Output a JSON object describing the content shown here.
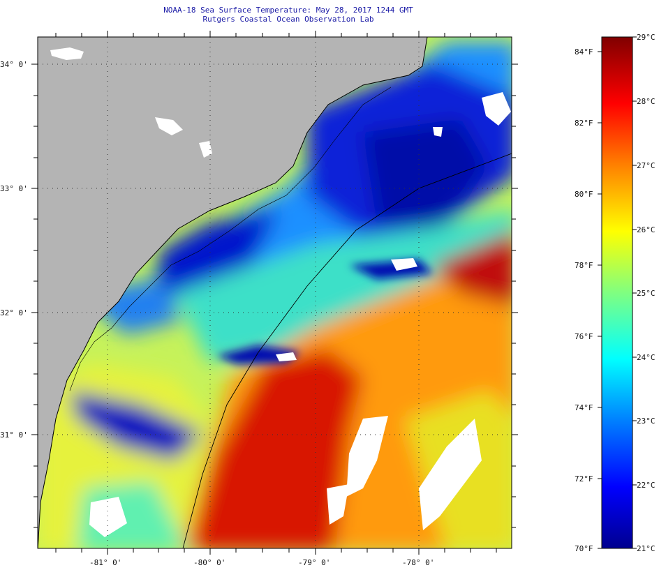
{
  "header": {
    "title": "NOAA-18 Sea Surface Temperature:  May 28, 2017 1244 GMT",
    "subtitle": "Rutgers Coastal Ocean Observation Lab"
  },
  "map": {
    "lat_labels": [
      "34° 0'",
      "33° 0'",
      "32° 0'",
      "31° 0'"
    ],
    "lon_labels": [
      "-81° 0'",
      "-80° 0'",
      "-79° 0'",
      "-78° 0'"
    ],
    "land_color": "#b4b4b4",
    "coast_color": "#000000",
    "cloud_color": "#ffffff"
  },
  "colorbar": {
    "f_labels": [
      "84°F",
      "82°F",
      "80°F",
      "78°F",
      "76°F",
      "74°F",
      "72°F",
      "70°F"
    ],
    "c_labels": [
      "29°C",
      "28°C",
      "27°C",
      "26°C",
      "25°C",
      "24°C",
      "23°C",
      "22°C",
      "21°C"
    ],
    "stops": [
      "#00008f",
      "#0000ff",
      "#0080ff",
      "#00ffff",
      "#80ff80",
      "#ffff00",
      "#ff8000",
      "#ff0000",
      "#800000"
    ]
  }
}
